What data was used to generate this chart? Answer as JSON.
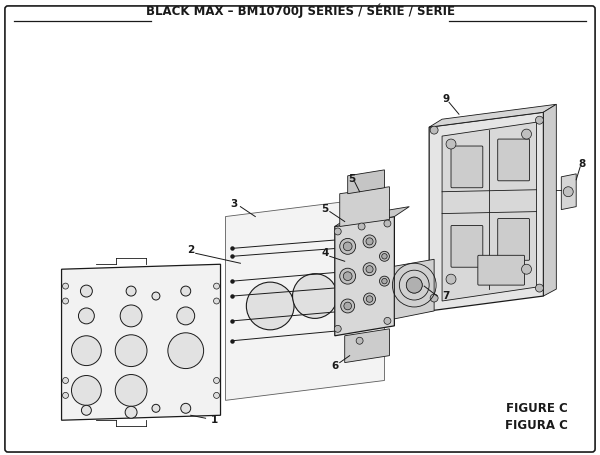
{
  "title": "BLACK MAX – BM10700J SERIES / SÉRIE / SERIE",
  "figure_label": "FIGURE C",
  "figura_label": "FIGURA C",
  "bg_color": "#ffffff",
  "line_color": "#1a1a1a",
  "title_fontsize": 8.5,
  "label_fontsize": 7.5,
  "fig_label_fontsize": 8.5
}
